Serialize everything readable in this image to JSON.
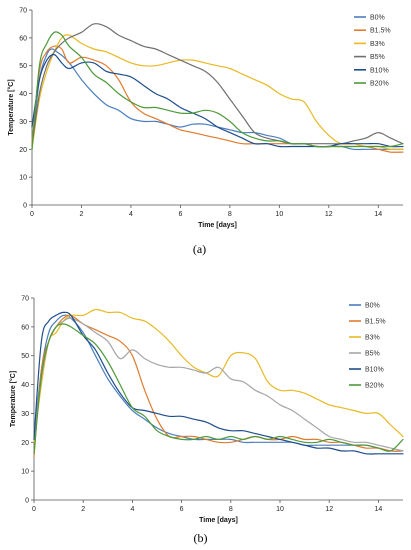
{
  "chart_data": [
    {
      "panel": "a",
      "caption": "(a)",
      "type": "line",
      "xlabel": "Time [days]",
      "ylabel": "Temperature [°C]",
      "xlim": [
        0,
        15
      ],
      "ylim": [
        0,
        70
      ],
      "xticks": [
        0,
        2,
        4,
        6,
        8,
        10,
        12,
        14
      ],
      "yticks": [
        0,
        10,
        20,
        30,
        40,
        50,
        60,
        70
      ],
      "grid": false,
      "legend": "top-right",
      "series": [
        {
          "name": "B0%",
          "color": "#4a7ebf",
          "x": [
            0,
            0.3,
            0.6,
            0.8,
            1.0,
            1.3,
            1.6,
            2.0,
            2.5,
            3.0,
            3.5,
            4.0,
            4.5,
            5.0,
            5.5,
            6.0,
            6.5,
            7.0,
            7.5,
            8.0,
            8.5,
            9.0,
            9.5,
            10.0,
            10.5,
            11.0,
            11.5,
            12.0,
            12.5,
            13.0,
            13.5,
            14.0,
            14.5,
            15.0
          ],
          "y": [
            20,
            45,
            54,
            56,
            55,
            53,
            50,
            45,
            40,
            36,
            34,
            31,
            30,
            30,
            29,
            28,
            29,
            29,
            28,
            27,
            26,
            26,
            25,
            24,
            22,
            22,
            21,
            21,
            21,
            20,
            20,
            20,
            20,
            20
          ]
        },
        {
          "name": "B1.5%",
          "color": "#e07b2e",
          "x": [
            0,
            0.3,
            0.6,
            0.9,
            1.2,
            1.5,
            2.0,
            2.5,
            3.0,
            3.5,
            4.0,
            4.5,
            5.0,
            5.5,
            6.0,
            6.5,
            7.0,
            7.5,
            8.0,
            8.5,
            9.0,
            9.5,
            10.0,
            10.5,
            11.0,
            11.5,
            12.0,
            12.5,
            13.0,
            13.5,
            14.0,
            14.5,
            15.0
          ],
          "y": [
            22,
            48,
            55,
            57,
            56,
            51,
            53,
            52,
            50,
            45,
            37,
            33,
            31,
            29,
            27,
            26,
            25,
            24,
            23,
            22,
            22,
            22,
            22,
            22,
            22,
            21,
            21,
            21,
            21,
            21,
            20,
            19,
            19
          ]
        },
        {
          "name": "B3%",
          "color": "#e8b923",
          "x": [
            0,
            0.3,
            0.6,
            0.9,
            1.2,
            1.5,
            2.0,
            2.5,
            3.0,
            3.5,
            4.0,
            4.5,
            5.0,
            5.5,
            6.0,
            6.5,
            7.0,
            7.5,
            8.0,
            8.5,
            9.0,
            9.5,
            10.0,
            10.5,
            11.0,
            11.5,
            12.0,
            12.5,
            13.0,
            13.5,
            14.0,
            14.5,
            15.0
          ],
          "y": [
            20,
            38,
            48,
            55,
            60,
            61,
            58,
            56,
            55,
            53,
            51,
            50,
            50,
            51,
            52,
            52,
            51,
            50,
            49,
            47,
            45,
            43,
            40,
            38,
            37,
            30,
            25,
            22,
            22,
            21,
            21,
            20,
            20
          ]
        },
        {
          "name": "B5%",
          "color": "#6f6f6f",
          "x": [
            0,
            0.3,
            0.6,
            0.9,
            1.2,
            1.5,
            2.0,
            2.5,
            3.0,
            3.5,
            4.0,
            4.5,
            5.0,
            5.5,
            6.0,
            6.5,
            7.0,
            7.5,
            8.0,
            8.5,
            9.0,
            9.5,
            10.0,
            10.5,
            11.0,
            11.5,
            12.0,
            12.5,
            13.0,
            13.5,
            14.0,
            14.5,
            15.0
          ],
          "y": [
            21,
            40,
            50,
            55,
            58,
            60,
            62,
            65,
            64,
            61,
            59,
            57,
            56,
            54,
            52,
            50,
            48,
            44,
            38,
            32,
            26,
            24,
            23,
            22,
            22,
            22,
            22,
            22,
            23,
            24,
            26,
            24,
            22
          ]
        },
        {
          "name": "B10%",
          "color": "#1f4e8c",
          "x": [
            0,
            0.3,
            0.6,
            0.9,
            1.2,
            1.5,
            2.0,
            2.5,
            3.0,
            3.5,
            4.0,
            4.5,
            5.0,
            5.5,
            6.0,
            6.5,
            7.0,
            7.5,
            8.0,
            8.5,
            9.0,
            9.5,
            10.0,
            10.5,
            11.0,
            11.5,
            12.0,
            12.5,
            13.0,
            13.5,
            14.0,
            14.5,
            15.0
          ],
          "y": [
            28,
            45,
            52,
            54,
            51,
            49,
            51,
            51,
            48,
            47,
            46,
            43,
            40,
            38,
            35,
            33,
            31,
            28,
            26,
            24,
            22,
            22,
            21,
            21,
            21,
            21,
            21,
            22,
            22,
            22,
            22,
            21,
            21
          ]
        },
        {
          "name": "B20%",
          "color": "#4e9a3a",
          "x": [
            0,
            0.3,
            0.6,
            0.9,
            1.2,
            1.5,
            2.0,
            2.5,
            3.0,
            3.5,
            4.0,
            4.5,
            5.0,
            5.5,
            6.0,
            6.5,
            7.0,
            7.5,
            8.0,
            8.5,
            9.0,
            9.5,
            10.0,
            10.5,
            11.0,
            11.5,
            12.0,
            12.5,
            13.0,
            13.5,
            14.0,
            14.5,
            15.0
          ],
          "y": [
            20,
            50,
            58,
            62,
            61,
            57,
            53,
            47,
            44,
            40,
            37,
            35,
            35,
            34,
            33,
            33,
            34,
            33,
            30,
            26,
            24,
            23,
            23,
            22,
            22,
            21,
            21,
            21,
            21,
            21,
            21,
            21,
            22
          ]
        }
      ]
    },
    {
      "panel": "b",
      "caption": "(b)",
      "type": "line",
      "xlabel": "Time [days]",
      "ylabel": "Temperature [°C]",
      "xlim": [
        0,
        15
      ],
      "ylim": [
        0,
        70
      ],
      "xticks": [
        0,
        2,
        4,
        6,
        8,
        10,
        12,
        14
      ],
      "yticks": [
        0,
        10,
        20,
        30,
        40,
        50,
        60,
        70
      ],
      "grid": false,
      "legend": "top-right",
      "series": [
        {
          "name": "B0%",
          "color": "#4a7ebf",
          "x": [
            0,
            0.3,
            0.6,
            0.9,
            1.2,
            1.5,
            2.0,
            2.5,
            3.0,
            3.5,
            4.0,
            4.5,
            5.0,
            5.5,
            6.0,
            6.5,
            7.0,
            7.5,
            8.0,
            8.5,
            9.0,
            9.5,
            10.0,
            10.5,
            11.0,
            11.5,
            12.0,
            12.5,
            13.0,
            13.5,
            14.0,
            14.5,
            15.0
          ],
          "y": [
            21,
            45,
            58,
            62,
            64,
            63,
            58,
            50,
            42,
            36,
            31,
            28,
            25,
            23,
            22,
            21,
            21,
            21,
            21,
            20,
            20,
            20,
            20,
            20,
            19,
            19,
            19,
            19,
            19,
            19,
            18,
            17,
            17
          ]
        },
        {
          "name": "B1.5%",
          "color": "#e07b2e",
          "x": [
            0,
            0.3,
            0.6,
            0.9,
            1.2,
            1.5,
            2.0,
            2.5,
            3.0,
            3.5,
            4.0,
            4.5,
            5.0,
            5.5,
            6.0,
            6.5,
            7.0,
            7.5,
            8.0,
            8.5,
            9.0,
            9.5,
            10.0,
            10.5,
            11.0,
            11.5,
            12.0,
            12.5,
            13.0,
            13.5,
            14.0,
            14.5,
            15.0
          ],
          "y": [
            15,
            45,
            55,
            60,
            63,
            64,
            61,
            59,
            57,
            55,
            50,
            38,
            28,
            22,
            22,
            22,
            21,
            20,
            20,
            21,
            22,
            21,
            21,
            22,
            21,
            21,
            20,
            20,
            19,
            18,
            18,
            17,
            17
          ]
        },
        {
          "name": "B3%",
          "color": "#e8b923",
          "x": [
            0,
            0.3,
            0.6,
            0.9,
            1.2,
            1.5,
            2.0,
            2.5,
            3.0,
            3.5,
            4.0,
            4.5,
            5.0,
            5.5,
            6.0,
            6.5,
            7.0,
            7.5,
            8.0,
            8.5,
            9.0,
            9.5,
            10.0,
            10.5,
            11.0,
            11.5,
            12.0,
            12.5,
            13.0,
            13.5,
            14.0,
            14.5,
            15.0
          ],
          "y": [
            20,
            40,
            55,
            58,
            62,
            64,
            64,
            66,
            65,
            65,
            63,
            62,
            59,
            55,
            50,
            46,
            44,
            43,
            50,
            51,
            49,
            41,
            38,
            38,
            37,
            35,
            33,
            32,
            31,
            30,
            30,
            26,
            22
          ]
        },
        {
          "name": "B5%",
          "color": "#a6a6a6",
          "x": [
            0,
            0.3,
            0.6,
            0.9,
            1.2,
            1.5,
            2.0,
            2.5,
            3.0,
            3.5,
            4.0,
            4.5,
            5.0,
            5.5,
            6.0,
            6.5,
            7.0,
            7.5,
            8.0,
            8.5,
            9.0,
            9.5,
            10.0,
            10.5,
            11.0,
            11.5,
            12.0,
            12.5,
            13.0,
            13.5,
            14.0,
            14.5,
            15.0
          ],
          "y": [
            21,
            42,
            55,
            60,
            62,
            63,
            61,
            58,
            55,
            49,
            52,
            49,
            47,
            46,
            46,
            45,
            44,
            46,
            42,
            41,
            38,
            36,
            33,
            31,
            28,
            25,
            22,
            21,
            20,
            20,
            19,
            18,
            17
          ]
        },
        {
          "name": "B10%",
          "color": "#1f4e8c",
          "x": [
            0,
            0.3,
            0.6,
            0.9,
            1.2,
            1.5,
            2.0,
            2.5,
            3.0,
            3.5,
            4.0,
            4.5,
            5.0,
            5.5,
            6.0,
            6.5,
            7.0,
            7.5,
            8.0,
            8.5,
            9.0,
            9.5,
            10.0,
            10.5,
            11.0,
            11.5,
            12.0,
            12.5,
            13.0,
            13.5,
            14.0,
            14.5,
            15.0
          ],
          "y": [
            21,
            55,
            62,
            64,
            65,
            64,
            57,
            52,
            44,
            37,
            32,
            31,
            30,
            29,
            29,
            28,
            27,
            25,
            24,
            24,
            23,
            22,
            21,
            20,
            19,
            18,
            18,
            17,
            17,
            16,
            16,
            16,
            16
          ]
        },
        {
          "name": "B20%",
          "color": "#4e9a3a",
          "x": [
            0,
            0.3,
            0.6,
            0.9,
            1.2,
            1.5,
            2.0,
            2.5,
            3.0,
            3.5,
            4.0,
            4.5,
            5.0,
            5.5,
            6.0,
            6.5,
            7.0,
            7.5,
            8.0,
            8.5,
            9.0,
            9.5,
            10.0,
            10.5,
            11.0,
            11.5,
            12.0,
            12.5,
            13.0,
            13.5,
            14.0,
            14.5,
            15.0
          ],
          "y": [
            16,
            43,
            55,
            60,
            61,
            60,
            57,
            54,
            48,
            40,
            32,
            29,
            24,
            22,
            21,
            21,
            22,
            21,
            22,
            21,
            22,
            21,
            22,
            21,
            20,
            20,
            21,
            20,
            19,
            19,
            18,
            17,
            21
          ]
        }
      ]
    }
  ]
}
